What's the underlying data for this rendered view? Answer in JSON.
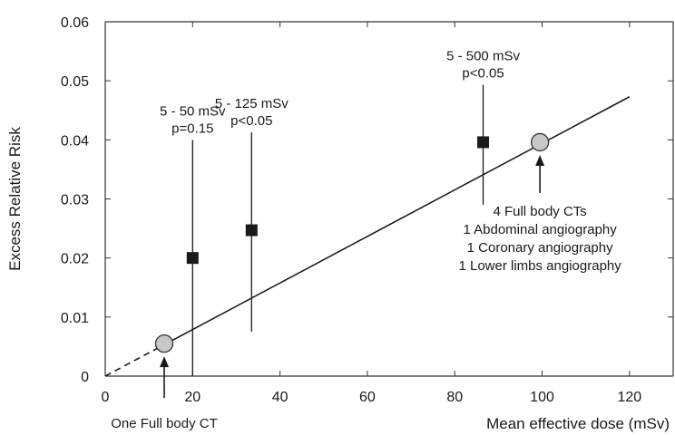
{
  "chart_data": {
    "type": "scatter",
    "xlabel": "Mean effective dose (mSv)",
    "ylabel": "Excess Relative Risk",
    "xlim": [
      0,
      130
    ],
    "ylim": [
      0,
      0.06
    ],
    "x_ticks": [
      0,
      20,
      40,
      60,
      80,
      100,
      120
    ],
    "x_tick_labels": [
      "0",
      "20",
      "40",
      "60",
      "80",
      "100",
      "120"
    ],
    "y_ticks": [
      0,
      0.01,
      0.02,
      0.03,
      0.04,
      0.05,
      0.06
    ],
    "y_tick_labels": [
      "0",
      "0.01",
      "0.02",
      "0.03",
      "0.04",
      "0.05",
      "0.06"
    ],
    "grid": false,
    "series": [
      {
        "marker": "square",
        "x": [
          20,
          33.5,
          86.5
        ],
        "y": [
          0.02,
          0.0247,
          0.0396
        ],
        "y_lower": [
          0.0,
          0.0075,
          0.029
        ],
        "y_upper": [
          0.04,
          0.0413,
          0.0493
        ],
        "labels": [
          [
            "5 - 50 mSv",
            "p=0.15"
          ],
          [
            "5 - 125 mSv",
            "p<0.05"
          ],
          [
            "5 - 500 mSv",
            "p<0.05"
          ]
        ]
      },
      {
        "marker": "circle",
        "x": [
          13.5,
          99.5
        ],
        "y": [
          0.0055,
          0.0396
        ]
      }
    ],
    "trend_line": {
      "from": [
        0,
        0
      ],
      "to": [
        120,
        0.0473
      ],
      "dashed_until_x": 11
    },
    "annotations": [
      {
        "lines": [
          "One Full body CT"
        ],
        "points_to": [
          13.5,
          0.0055
        ]
      },
      {
        "lines": [
          "4 Full body CTs",
          "1 Abdominal angiography",
          "1 Coronary angiography",
          "1 Lower limbs angiography"
        ],
        "points_to": [
          99.5,
          0.0396
        ]
      }
    ],
    "colors": {
      "square": "#1a1a1a",
      "circle_fill": "#c8c8c8",
      "circle_stroke": "#333333",
      "line": "#1a1a1a"
    }
  }
}
